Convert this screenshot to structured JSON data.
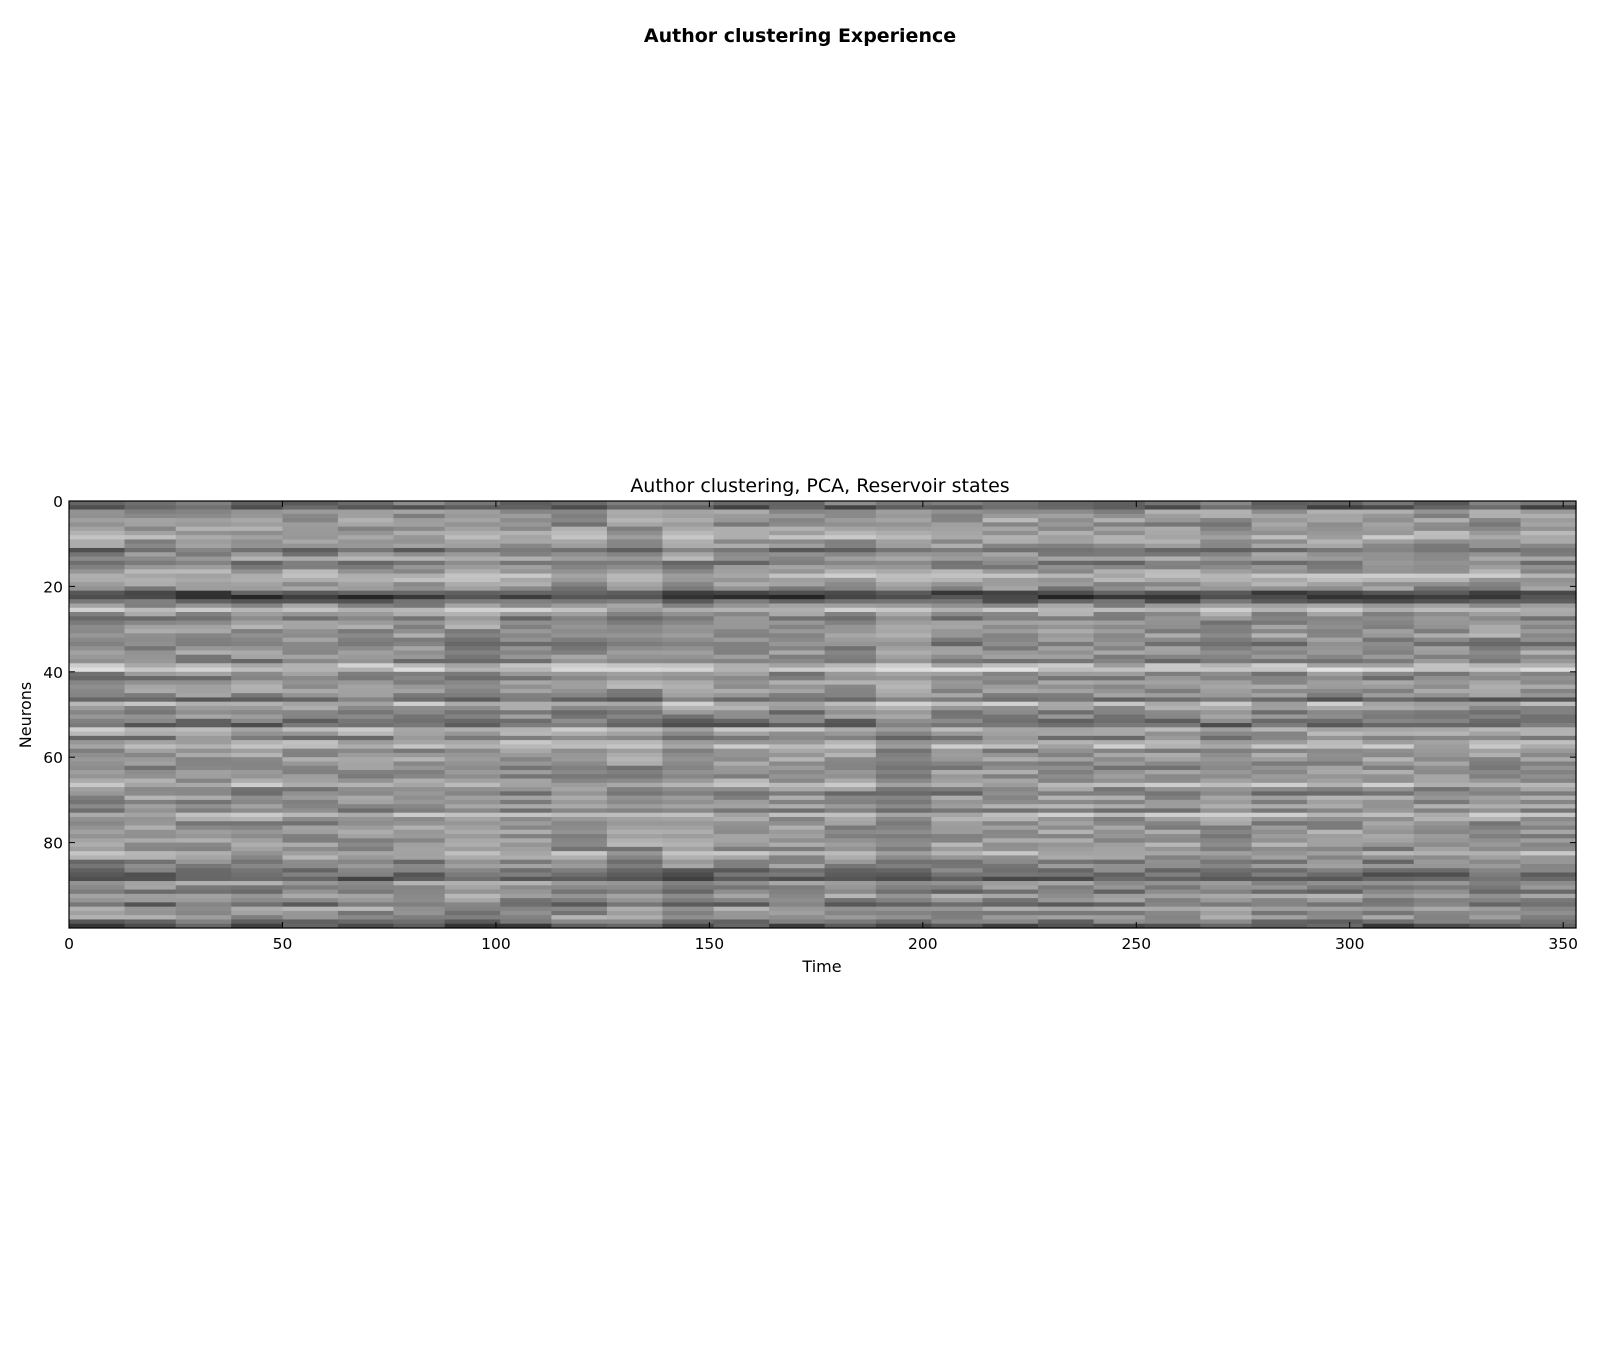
{
  "figure": {
    "suptitle": "Author clustering Experience"
  },
  "chart_data": {
    "type": "heatmap",
    "title": "Author clustering, PCA, Reservoir states",
    "xlabel": "Time",
    "ylabel": "Neurons",
    "xlim": [
      0,
      353
    ],
    "ylim": [
      100,
      0
    ],
    "x_ticks": [
      0,
      50,
      100,
      150,
      200,
      250,
      300,
      350
    ],
    "x_tick_labels": [
      "0",
      "50",
      "100",
      "150",
      "200",
      "250",
      "300",
      "350"
    ],
    "y_ticks": [
      0,
      20,
      40,
      60,
      80
    ],
    "y_tick_labels": [
      "0",
      "20",
      "40",
      "60",
      "80"
    ],
    "grid": false,
    "colormap": "gray",
    "n_rows": 100,
    "n_cols": 353,
    "row_base_intensity": [
      0.45,
      0.35,
      0.6,
      0.58,
      0.62,
      0.55,
      0.6,
      0.65,
      0.7,
      0.6,
      0.58,
      0.42,
      0.55,
      0.62,
      0.5,
      0.55,
      0.62,
      0.7,
      0.68,
      0.6,
      0.55,
      0.3,
      0.25,
      0.4,
      0.55,
      0.72,
      0.6,
      0.5,
      0.55,
      0.6,
      0.58,
      0.62,
      0.55,
      0.5,
      0.55,
      0.6,
      0.55,
      0.5,
      0.72,
      0.78,
      0.55,
      0.5,
      0.6,
      0.62,
      0.58,
      0.55,
      0.42,
      0.72,
      0.6,
      0.5,
      0.55,
      0.45,
      0.4,
      0.72,
      0.62,
      0.5,
      0.68,
      0.72,
      0.55,
      0.6,
      0.62,
      0.58,
      0.55,
      0.6,
      0.55,
      0.62,
      0.72,
      0.55,
      0.5,
      0.6,
      0.55,
      0.62,
      0.5,
      0.72,
      0.6,
      0.55,
      0.58,
      0.62,
      0.55,
      0.6,
      0.62,
      0.55,
      0.68,
      0.6,
      0.5,
      0.55,
      0.45,
      0.4,
      0.35,
      0.6,
      0.55,
      0.48,
      0.62,
      0.55,
      0.42,
      0.62,
      0.55,
      0.6,
      0.45,
      0.3
    ]
  }
}
